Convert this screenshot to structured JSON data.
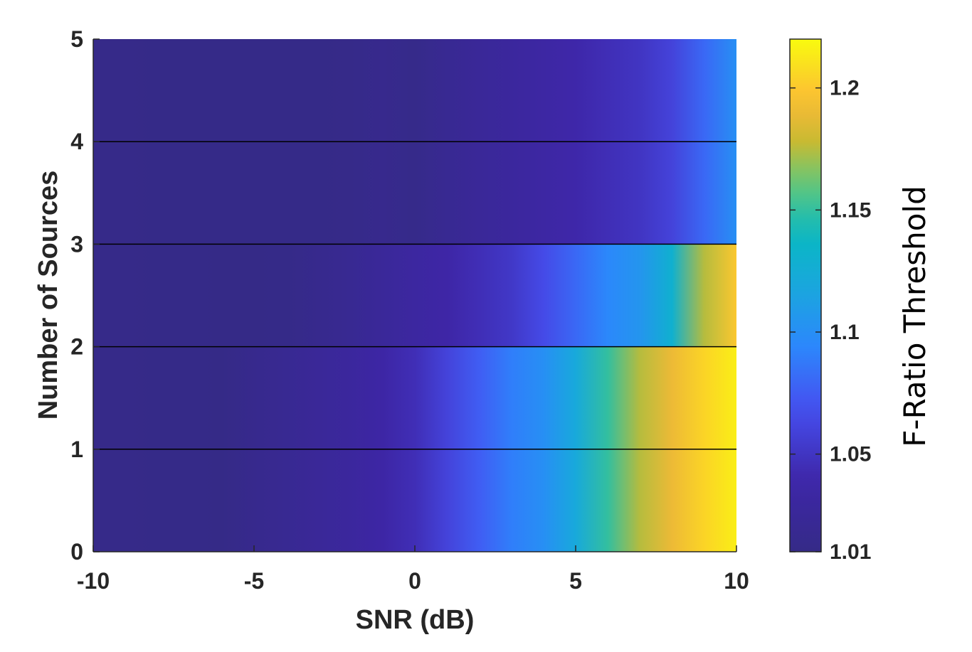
{
  "chart_data": {
    "type": "heatmap",
    "xlabel": "SNR (dB)",
    "ylabel": "Number of Sources",
    "colorbar_label": "F-Ratio Threshold",
    "xlim": [
      -10,
      10
    ],
    "ylim": [
      0,
      5
    ],
    "x_ticks": [
      "-10",
      "-5",
      "0",
      "5",
      "10"
    ],
    "y_ticks": [
      "0",
      "1",
      "2",
      "3",
      "4",
      "5"
    ],
    "clim": [
      1.01,
      1.22
    ],
    "colorbar_ticks": [
      "1.01",
      "1.05",
      "1.1",
      "1.15",
      "1.2"
    ],
    "colormap": "parula",
    "band_boundaries": [
      0,
      1,
      2,
      3,
      4,
      5
    ],
    "snr": [
      -10,
      -9,
      -8,
      -7,
      -6,
      -5,
      -4,
      -3,
      -2,
      -1,
      0,
      1,
      2,
      3,
      4,
      5,
      6,
      7,
      8,
      9,
      10
    ],
    "rows": [
      {
        "sources_range": [
          0,
          2
        ],
        "values": [
          1.012,
          1.012,
          1.011,
          1.011,
          1.01,
          1.015,
          1.02,
          1.025,
          1.03,
          1.037,
          1.045,
          1.06,
          1.075,
          1.09,
          1.1,
          1.12,
          1.15,
          1.175,
          1.19,
          1.205,
          1.215
        ]
      },
      {
        "sources_range": [
          2,
          3
        ],
        "values": [
          1.012,
          1.012,
          1.011,
          1.011,
          1.01,
          1.01,
          1.011,
          1.015,
          1.02,
          1.026,
          1.032,
          1.038,
          1.045,
          1.052,
          1.065,
          1.08,
          1.095,
          1.105,
          1.13,
          1.175,
          1.2
        ]
      },
      {
        "sources_range": [
          3,
          5
        ],
        "values": [
          1.012,
          1.012,
          1.011,
          1.011,
          1.011,
          1.011,
          1.011,
          1.011,
          1.012,
          1.015,
          1.013,
          1.02,
          1.025,
          1.03,
          1.035,
          1.04,
          1.045,
          1.05,
          1.06,
          1.08,
          1.1
        ]
      }
    ]
  },
  "colors": {
    "axis": "#262626",
    "band_line": "#000000"
  }
}
